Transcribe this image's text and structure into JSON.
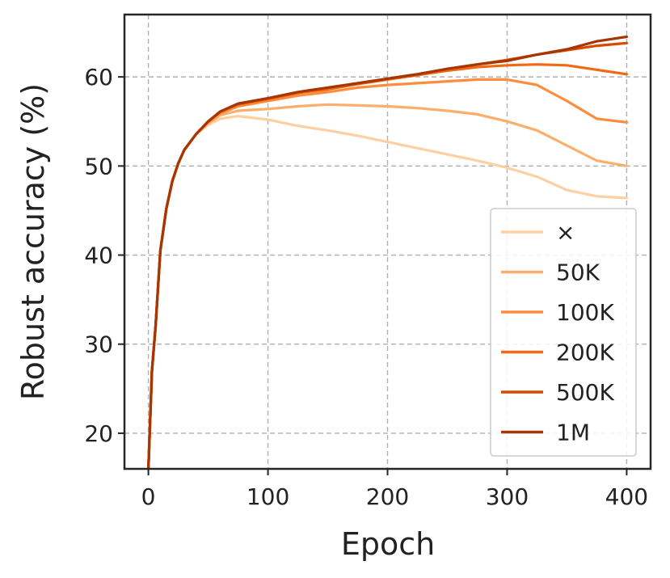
{
  "chart_data": {
    "type": "line",
    "xlabel": "Epoch",
    "ylabel": "Robust accuracy (%)",
    "xlim": [
      -20,
      420
    ],
    "ylim": [
      16,
      67
    ],
    "xticks": [
      0,
      100,
      200,
      300,
      400
    ],
    "yticks": [
      20,
      30,
      40,
      50,
      60
    ],
    "grid": true,
    "legend_position": "lower-right",
    "x": [
      0,
      3,
      6,
      10,
      15,
      20,
      25,
      30,
      40,
      50,
      60,
      75,
      100,
      125,
      150,
      175,
      200,
      225,
      250,
      275,
      300,
      325,
      350,
      375,
      400
    ],
    "series": [
      {
        "name": "×",
        "color": "#fdd0a2",
        "values": [
          16.0,
          27,
          32,
          40.5,
          45.2,
          48.3,
          50.3,
          51.8,
          53.6,
          54.6,
          55.3,
          55.6,
          55.2,
          54.5,
          54.0,
          53.4,
          52.7,
          52.0,
          51.3,
          50.6,
          49.8,
          48.8,
          47.3,
          46.6,
          46.4
        ]
      },
      {
        "name": "50K",
        "color": "#fdae6b",
        "values": [
          16.0,
          27,
          32,
          40.5,
          45.2,
          48.3,
          50.3,
          51.8,
          53.6,
          54.8,
          55.7,
          56.2,
          56.4,
          56.7,
          56.9,
          56.8,
          56.7,
          56.5,
          56.2,
          55.8,
          55.0,
          54.0,
          52.3,
          50.6,
          50.0
        ]
      },
      {
        "name": "100K",
        "color": "#fd8d3c",
        "values": [
          16.0,
          27,
          32,
          40.5,
          45.2,
          48.3,
          50.3,
          51.8,
          53.6,
          54.9,
          55.9,
          56.7,
          57.3,
          57.9,
          58.3,
          58.8,
          59.1,
          59.3,
          59.5,
          59.7,
          59.7,
          59.1,
          57.3,
          55.3,
          54.9
        ]
      },
      {
        "name": "200K",
        "color": "#f16913",
        "values": [
          16.0,
          27,
          32,
          40.5,
          45.2,
          48.3,
          50.3,
          51.8,
          53.6,
          55.0,
          56.1,
          56.9,
          57.5,
          58.2,
          58.6,
          59.2,
          59.7,
          60.2,
          60.7,
          61.1,
          61.3,
          61.4,
          61.3,
          60.8,
          60.3
        ]
      },
      {
        "name": "500K",
        "color": "#d94801",
        "values": [
          16.0,
          27,
          32,
          40.5,
          45.2,
          48.3,
          50.3,
          51.8,
          53.6,
          55.0,
          56.1,
          57.0,
          57.6,
          58.3,
          58.8,
          59.3,
          59.8,
          60.3,
          60.9,
          61.4,
          61.9,
          62.5,
          63.0,
          63.5,
          63.8
        ]
      },
      {
        "name": "1M",
        "color": "#a63603",
        "values": [
          16.0,
          27,
          32,
          40.5,
          45.2,
          48.3,
          50.3,
          51.8,
          53.6,
          55.0,
          56.1,
          57.0,
          57.6,
          58.3,
          58.8,
          59.3,
          59.8,
          60.3,
          60.9,
          61.4,
          61.8,
          62.5,
          63.1,
          64.0,
          64.5
        ]
      }
    ]
  }
}
